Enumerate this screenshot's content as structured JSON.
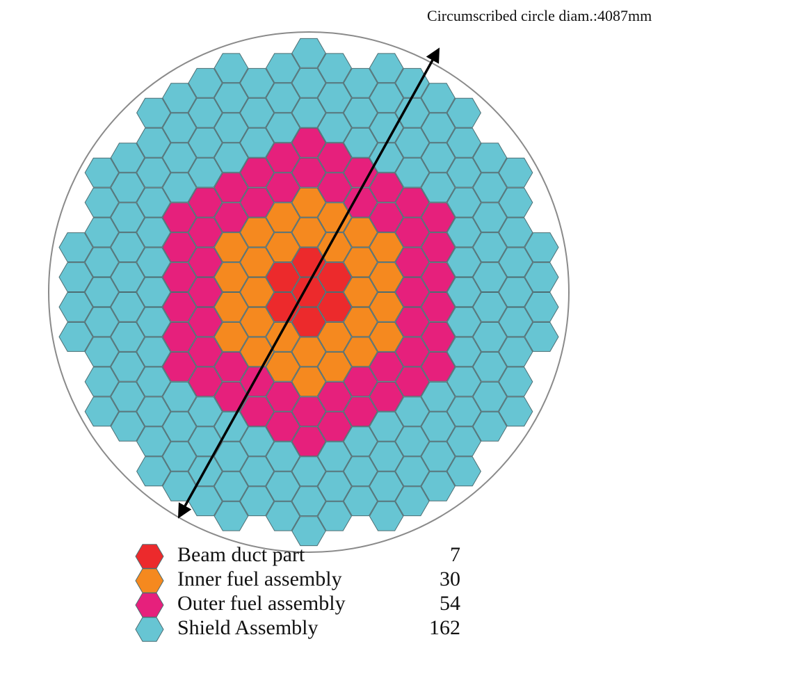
{
  "annotation": "Circumscribed circle diam.:4087mm",
  "legend": [
    {
      "label": "Beam duct part",
      "count": 7,
      "color": "#ec2a2c"
    },
    {
      "label": "Inner fuel assembly",
      "count": 30,
      "color": "#f5891f"
    },
    {
      "label": "Outer fuel assembly",
      "count": 54,
      "color": "#e6207c"
    },
    {
      "label": "Shield Assembly",
      "count": 162,
      "color": "#67c5d3"
    }
  ]
}
